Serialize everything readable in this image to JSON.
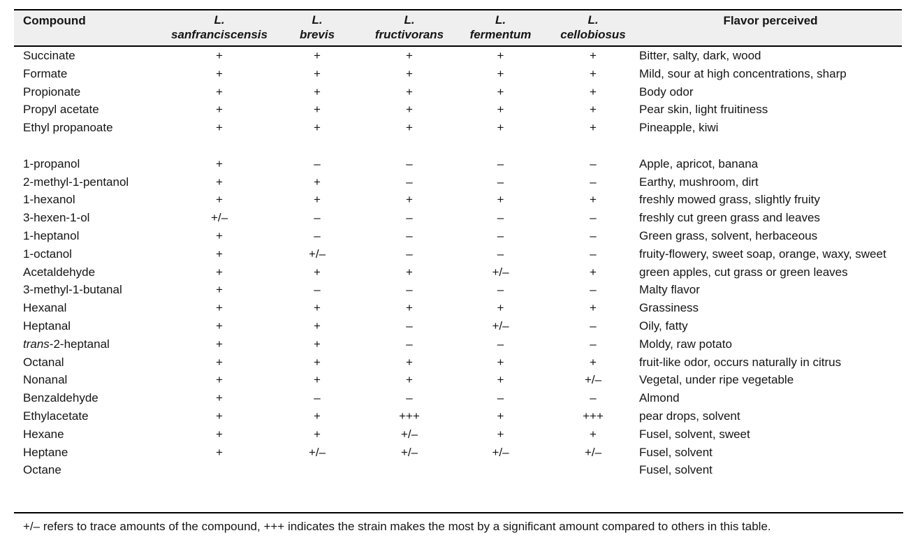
{
  "table": {
    "columns": [
      {
        "label": "Compound"
      },
      {
        "line1": "L.",
        "line2": "sanfranciscensis"
      },
      {
        "line1": "L.",
        "line2": "brevis"
      },
      {
        "line1": "L.",
        "line2": "fructivorans"
      },
      {
        "line1": "L.",
        "line2": "fermentum"
      },
      {
        "line1": "L.",
        "line2": "cellobiosus"
      },
      {
        "label": "Flavor perceived"
      }
    ],
    "rows": [
      {
        "compound": "Succinate",
        "values": [
          "+",
          "+",
          "+",
          "+",
          "+"
        ],
        "flavor": "Bitter, salty, dark, wood"
      },
      {
        "compound": "Formate",
        "values": [
          "+",
          "+",
          "+",
          "+",
          "+"
        ],
        "flavor": "Mild, sour at high concentrations, sharp"
      },
      {
        "compound": "Propionate",
        "values": [
          "+",
          "+",
          "+",
          "+",
          "+"
        ],
        "flavor": "Body odor"
      },
      {
        "compound": "Propyl acetate",
        "values": [
          "+",
          "+",
          "+",
          "+",
          "+"
        ],
        "flavor": "Pear skin, light fruitiness"
      },
      {
        "compound": "Ethyl propanoate",
        "values": [
          "+",
          "+",
          "+",
          "+",
          "+"
        ],
        "flavor": "Pineapple, kiwi"
      },
      {
        "spacer": true
      },
      {
        "compound": "1-propanol",
        "values": [
          "+",
          "–",
          "–",
          "–",
          "–"
        ],
        "flavor": "Apple, apricot, banana"
      },
      {
        "compound": "2-methyl-1-pentanol",
        "values": [
          "+",
          "+",
          "–",
          "–",
          "–"
        ],
        "flavor": "Earthy, mushroom, dirt"
      },
      {
        "compound": "1-hexanol",
        "values": [
          "+",
          "+",
          "+",
          "+",
          "+"
        ],
        "flavor": "freshly mowed grass, slightly fruity"
      },
      {
        "compound": "3-hexen-1-ol",
        "values": [
          "+/–",
          "–",
          "–",
          "–",
          "–"
        ],
        "flavor": "freshly cut green grass and leaves"
      },
      {
        "compound": "1-heptanol",
        "values": [
          "+",
          "–",
          "–",
          "–",
          "–"
        ],
        "flavor": "Green grass, solvent, herbaceous"
      },
      {
        "compound": "1-octanol",
        "values": [
          "+",
          "+/–",
          "–",
          "–",
          "–"
        ],
        "flavor": "fruity-flowery, sweet soap, orange, waxy, sweet"
      },
      {
        "compound": "Acetaldehyde",
        "values": [
          "+",
          "+",
          "+",
          "+/–",
          "+"
        ],
        "flavor": "green apples, cut grass or green leaves"
      },
      {
        "compound": "3-methyl-1-butanal",
        "values": [
          "+",
          "–",
          "–",
          "–",
          "–"
        ],
        "flavor": "Malty flavor"
      },
      {
        "compound": "Hexanal",
        "values": [
          "+",
          "+",
          "+",
          "+",
          "+"
        ],
        "flavor": "Grassiness"
      },
      {
        "compound": "Heptanal",
        "values": [
          "+",
          "+",
          "–",
          "+/–",
          "–"
        ],
        "flavor": "Oily, fatty"
      },
      {
        "compound_italic_prefix": "trans",
        "compound": "-2-heptanal",
        "values": [
          "+",
          "+",
          "–",
          "–",
          "–"
        ],
        "flavor": "Moldy, raw potato"
      },
      {
        "compound": "Octanal",
        "values": [
          "+",
          "+",
          "+",
          "+",
          "+"
        ],
        "flavor": "fruit-like odor, occurs naturally in citrus"
      },
      {
        "compound": "Nonanal",
        "values": [
          "+",
          "+",
          "+",
          "+",
          "+/–"
        ],
        "flavor": "Vegetal, under ripe vegetable"
      },
      {
        "compound": "Benzaldehyde",
        "values": [
          "+",
          "–",
          "–",
          "–",
          "–"
        ],
        "flavor": "Almond"
      },
      {
        "compound": "Ethylacetate",
        "values": [
          "+",
          "+",
          "+++",
          "+",
          "+++"
        ],
        "flavor": "pear drops, solvent"
      },
      {
        "compound": "Hexane",
        "values": [
          "+",
          "+",
          "+/–",
          "+",
          "+"
        ],
        "flavor": "Fusel, solvent, sweet"
      },
      {
        "compound": "Heptane",
        "values": [
          "+",
          "+/–",
          "+/–",
          "+/–",
          "+/–"
        ],
        "flavor": "Fusel, solvent"
      },
      {
        "compound": "Octane",
        "values": [
          "",
          "",
          "",
          "",
          ""
        ],
        "flavor": "Fusel, solvent"
      }
    ],
    "footnote": "+/– refers to trace amounts of the compound, +++ indicates the strain makes the most by a significant amount compared to others in this table."
  }
}
